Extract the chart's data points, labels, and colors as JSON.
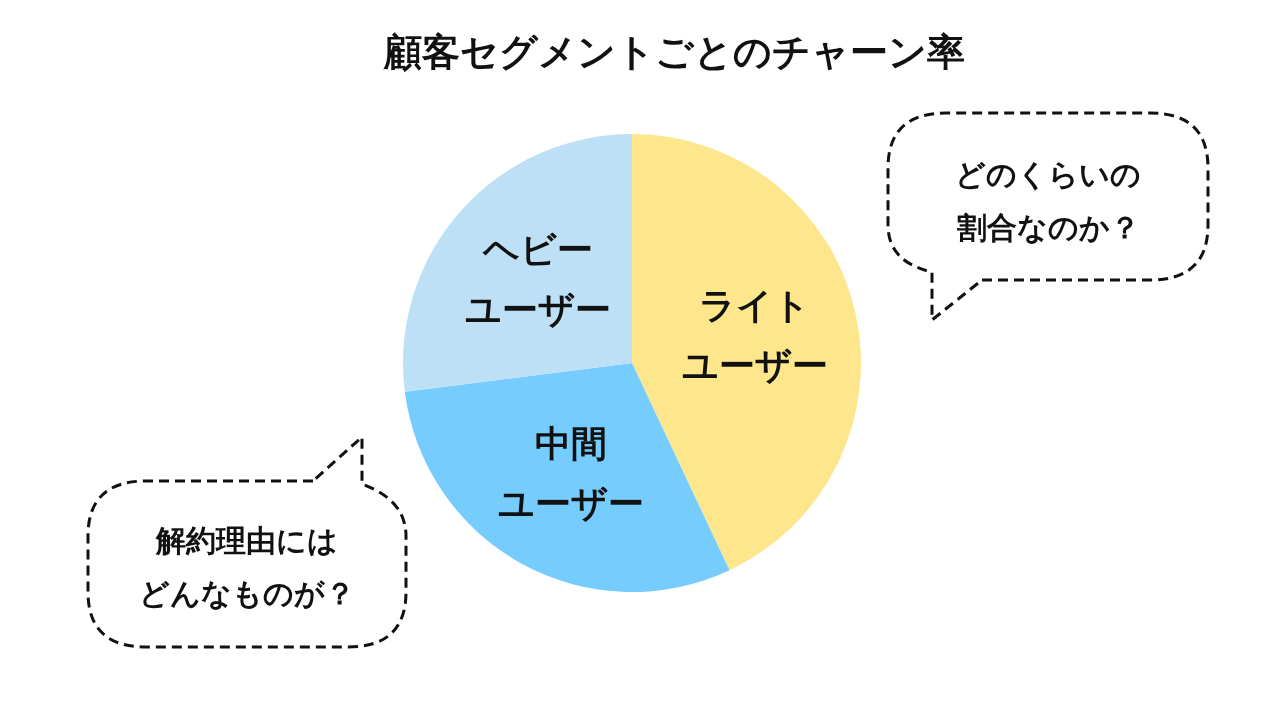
{
  "chart_data": {
    "type": "pie",
    "title": "顧客セグメントごとのチャーン率",
    "categories": [
      "ライトユーザー",
      "中間ユーザー",
      "ヘビーユーザー"
    ],
    "values": [
      43,
      30,
      27
    ],
    "colors": [
      "#fde68b",
      "#76cdfd",
      "#bee0f7"
    ],
    "legend": false,
    "annotations": [
      "どのくらいの割合なのか？",
      "解約理由にはどんなものが？"
    ]
  }
}
